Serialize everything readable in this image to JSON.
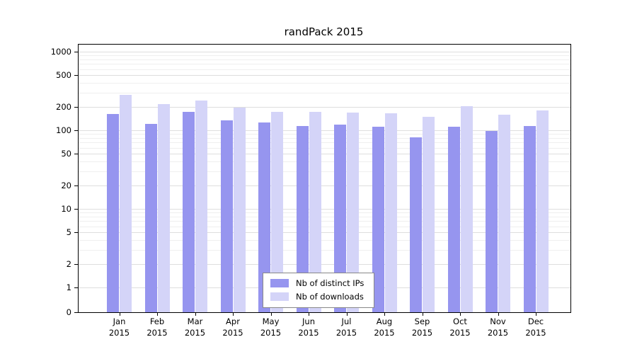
{
  "chart_data": {
    "type": "bar",
    "title": "randPack 2015",
    "categories": [
      "Jan",
      "Feb",
      "Mar",
      "Apr",
      "May",
      "Jun",
      "Jul",
      "Aug",
      "Sep",
      "Oct",
      "Nov",
      "Dec"
    ],
    "year": "2015",
    "series": [
      {
        "name": "Nb of distinct IPs",
        "color": "#9695ef",
        "values": [
          160,
          120,
          170,
          135,
          125,
          113,
          118,
          110,
          82,
          112,
          98,
          113
        ]
      },
      {
        "name": "Nb of downloads",
        "color": "#d4d4f8",
        "values": [
          280,
          215,
          240,
          195,
          172,
          172,
          168,
          163,
          148,
          202,
          158,
          178
        ]
      }
    ],
    "yscale": "log",
    "ylabel": "",
    "xlabel": "",
    "yticks": [
      1000,
      500,
      200,
      100,
      50,
      20,
      10,
      5,
      2,
      1,
      0
    ],
    "minor_gridlines": [
      3,
      4,
      6,
      7,
      8,
      9,
      30,
      40,
      60,
      70,
      80,
      90,
      300,
      400,
      600,
      700,
      800,
      900
    ],
    "grid": true,
    "legend": {
      "position": "bottom-center",
      "entries": [
        "Nb of distinct IPs",
        "Nb of downloads"
      ]
    }
  }
}
